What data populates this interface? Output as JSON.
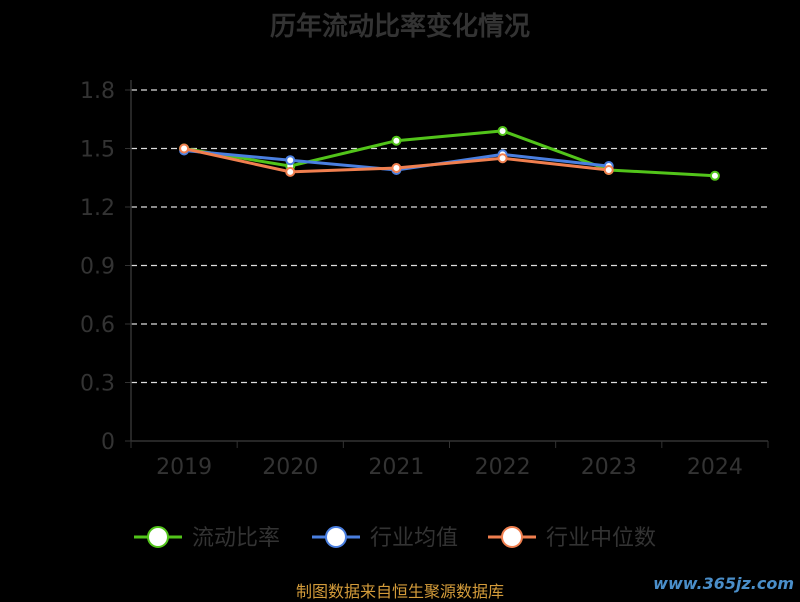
{
  "chart_data": {
    "type": "line",
    "title": "历年流动比率变化情况",
    "categories": [
      "2019",
      "2020",
      "2021",
      "2022",
      "2023",
      "2024"
    ],
    "y_ticks": [
      "0",
      "0.3",
      "0.6",
      "0.9",
      "1.2",
      "1.5",
      "1.8"
    ],
    "ylim": [
      0,
      1.8
    ],
    "grid": true,
    "legend_position": "bottom",
    "series": [
      {
        "name": "流动比率",
        "color": "#52c41a",
        "values": [
          1.5,
          1.41,
          1.54,
          1.59,
          1.39,
          1.36
        ]
      },
      {
        "name": "行业均值",
        "color": "#4a7fe0",
        "values": [
          1.49,
          1.44,
          1.39,
          1.47,
          1.41,
          null
        ]
      },
      {
        "name": "行业中位数",
        "color": "#f07f4f",
        "values": [
          1.5,
          1.38,
          1.4,
          1.45,
          1.39,
          null
        ]
      }
    ]
  },
  "footer": {
    "source": "制图数据来自恒生聚源数据库",
    "watermark": "www.365jz.com"
  }
}
